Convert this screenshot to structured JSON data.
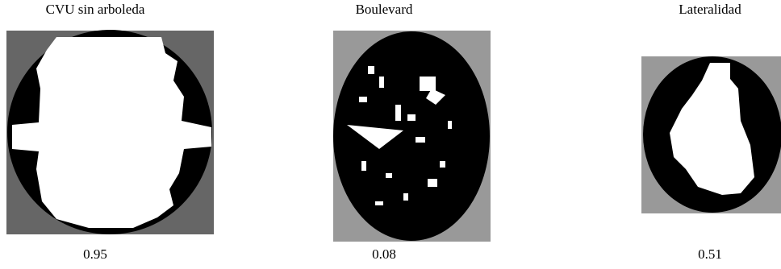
{
  "panels": [
    {
      "title": "CVU sin arboleda",
      "value": 0.95
    },
    {
      "title": "Boulevard",
      "value": 0.08
    },
    {
      "title": "Lateralidad",
      "value": 0.51
    }
  ]
}
